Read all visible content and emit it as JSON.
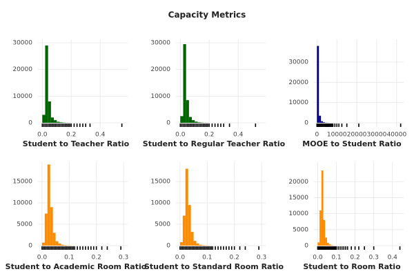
{
  "title": "Capacity Metrics",
  "chart_data": [
    {
      "type": "histogram",
      "xlabel": "Student to Teacher Ratio",
      "color": "#006400",
      "bins": [
        0,
        0.02,
        0.04,
        0.06,
        0.08,
        0.1,
        0.12,
        0.14,
        0.16,
        0.18,
        0.2
      ],
      "counts": [
        3000,
        29000,
        8000,
        2000,
        1000,
        400,
        200,
        100,
        50,
        30
      ],
      "rug": [
        0,
        0.01,
        0.02,
        0.03,
        0.04,
        0.05,
        0.06,
        0.07,
        0.08,
        0.09,
        0.1,
        0.11,
        0.12,
        0.13,
        0.14,
        0.15,
        0.16,
        0.17,
        0.18,
        0.19,
        0.2,
        0.22,
        0.24,
        0.26,
        0.28,
        0.3,
        0.33,
        0.55
      ],
      "xlim": [
        -0.03,
        0.59
      ],
      "xticks": [
        {
          "value": 0,
          "label": "0.0"
        },
        0.2,
        0.4
      ],
      "ylim": [
        -1550,
        31300
      ],
      "yticks": [
        0,
        10000,
        20000,
        30000
      ],
      "grid": true
    },
    {
      "type": "histogram",
      "xlabel": "Student to Regular Teacher Ratio",
      "color": "#006400",
      "bins": [
        0,
        0.02,
        0.04,
        0.06,
        0.08,
        0.1,
        0.12,
        0.14,
        0.16,
        0.18,
        0.2
      ],
      "counts": [
        2500,
        29500,
        8500,
        2200,
        1000,
        450,
        200,
        100,
        50,
        30
      ],
      "rug": [
        0,
        0.01,
        0.02,
        0.03,
        0.04,
        0.05,
        0.06,
        0.07,
        0.08,
        0.09,
        0.1,
        0.11,
        0.12,
        0.13,
        0.14,
        0.15,
        0.16,
        0.17,
        0.18,
        0.19,
        0.2,
        0.22,
        0.24,
        0.26,
        0.28,
        0.3,
        0.34,
        0.52
      ],
      "xlim": [
        -0.03,
        0.59
      ],
      "xticks": [
        {
          "value": 0,
          "label": "0.0"
        },
        0.2,
        0.4
      ],
      "ylim": [
        -1550,
        31300
      ],
      "yticks": [
        0,
        10000,
        20000,
        30000
      ],
      "grid": true
    },
    {
      "type": "histogram",
      "xlabel": "MOOE to Student Ratio",
      "color": "#00008b",
      "bins": [
        0,
        1000,
        2000,
        3000,
        4000,
        5000,
        6000,
        7000,
        8000
      ],
      "counts": [
        38000,
        3500,
        800,
        300,
        100,
        50,
        20,
        10
      ],
      "rug": [
        0,
        500,
        1000,
        1500,
        2000,
        2500,
        3000,
        3500,
        4000,
        4500,
        5000,
        5500,
        6000,
        6500,
        7000,
        7500,
        8000,
        9000,
        10000,
        11000,
        12500,
        15000,
        21000,
        42000
      ],
      "xlim": [
        -1500,
        43500
      ],
      "xticks": [
        0,
        10000,
        20000,
        30000,
        40000
      ],
      "ylim": [
        -2050,
        41250
      ],
      "yticks": [
        0,
        10000,
        20000,
        30000
      ],
      "grid": true
    },
    {
      "type": "histogram",
      "xlabel": "Student to Academic Room Ratio",
      "color": "#ff8c00",
      "bins": [
        0,
        0.01,
        0.02,
        0.03,
        0.04,
        0.05,
        0.06,
        0.07,
        0.08,
        0.09,
        0.1,
        0.11,
        0.12
      ],
      "counts": [
        700,
        7500,
        19000,
        9000,
        3000,
        1000,
        500,
        200,
        100,
        50,
        20,
        10
      ],
      "rug": [
        0,
        0.005,
        0.01,
        0.015,
        0.02,
        0.025,
        0.03,
        0.035,
        0.04,
        0.045,
        0.05,
        0.055,
        0.06,
        0.065,
        0.07,
        0.075,
        0.08,
        0.085,
        0.09,
        0.095,
        0.1,
        0.105,
        0.11,
        0.115,
        0.12,
        0.13,
        0.14,
        0.15,
        0.16,
        0.17,
        0.18,
        0.19,
        0.2,
        0.22,
        0.24,
        0.29
      ],
      "xlim": [
        -0.015,
        0.315
      ],
      "xticks": [
        {
          "value": 0,
          "label": "0.0"
        },
        0.1,
        0.2,
        0.3
      ],
      "ylim": [
        -980,
        19550
      ],
      "yticks": [
        0,
        5000,
        10000,
        15000
      ],
      "grid": true
    },
    {
      "type": "histogram",
      "xlabel": "Student to Standard Room Ratio",
      "color": "#ff8c00",
      "bins": [
        0,
        0.01,
        0.02,
        0.03,
        0.04,
        0.05,
        0.06,
        0.07,
        0.08,
        0.09,
        0.1,
        0.11,
        0.12
      ],
      "counts": [
        800,
        7000,
        18000,
        9500,
        3200,
        1100,
        500,
        200,
        100,
        50,
        20,
        10
      ],
      "rug": [
        0,
        0.005,
        0.01,
        0.015,
        0.02,
        0.025,
        0.03,
        0.035,
        0.04,
        0.045,
        0.05,
        0.055,
        0.06,
        0.065,
        0.07,
        0.075,
        0.08,
        0.085,
        0.09,
        0.095,
        0.1,
        0.105,
        0.11,
        0.115,
        0.12,
        0.13,
        0.14,
        0.15,
        0.16,
        0.17,
        0.18,
        0.19,
        0.2,
        0.22,
        0.24,
        0.29
      ],
      "xlim": [
        -0.015,
        0.315
      ],
      "xticks": [
        {
          "value": 0,
          "label": "0.0"
        },
        0.1,
        0.2,
        0.3
      ],
      "ylim": [
        -980,
        19550
      ],
      "yticks": [
        0,
        5000,
        10000,
        15000
      ],
      "grid": true
    },
    {
      "type": "histogram",
      "xlabel": "Student to Room Ratio",
      "color": "#ff8c00",
      "bins": [
        0,
        0.01,
        0.02,
        0.03,
        0.04,
        0.05,
        0.06,
        0.07,
        0.08,
        0.09,
        0.1
      ],
      "counts": [
        1000,
        11000,
        23500,
        8000,
        2500,
        900,
        400,
        150,
        50,
        20
      ],
      "rug": [
        0,
        0.005,
        0.01,
        0.015,
        0.02,
        0.025,
        0.03,
        0.035,
        0.04,
        0.045,
        0.05,
        0.055,
        0.06,
        0.065,
        0.07,
        0.075,
        0.08,
        0.085,
        0.09,
        0.095,
        0.1,
        0.11,
        0.12,
        0.13,
        0.14,
        0.15,
        0.16,
        0.18,
        0.2,
        0.22,
        0.25,
        0.3,
        0.44
      ],
      "xlim": [
        -0.02,
        0.46
      ],
      "xticks": [
        {
          "value": 0,
          "label": "0.0"
        },
        0.1,
        0.2,
        0.3,
        0.4
      ],
      "ylim": [
        -1300,
        26100
      ],
      "yticks": [
        0,
        5000,
        10000,
        15000,
        20000
      ],
      "grid": true
    }
  ]
}
